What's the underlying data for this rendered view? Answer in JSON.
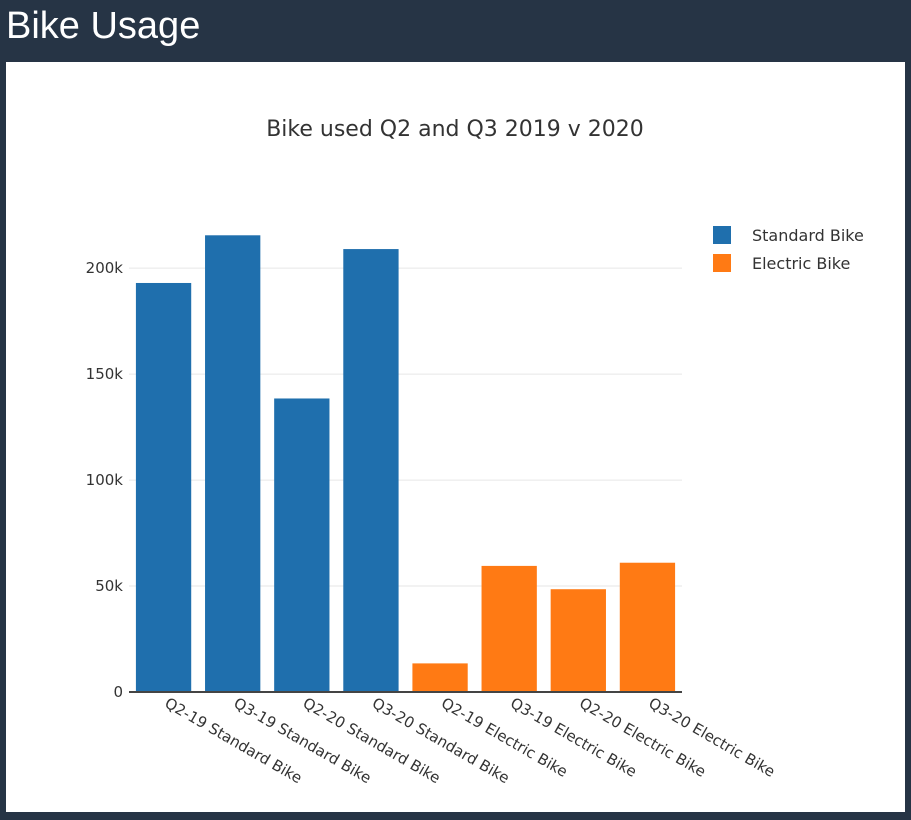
{
  "header": {
    "title": "Bike Usage"
  },
  "chart_data": {
    "type": "bar",
    "title": "Bike used Q2 and Q3 2019 v 2020",
    "xlabel": "",
    "ylabel": "",
    "ylim": [
      0,
      220000
    ],
    "y_ticks": [
      0,
      50000,
      100000,
      150000,
      200000
    ],
    "y_tick_labels": [
      "0",
      "50k",
      "100k",
      "150k",
      "200k"
    ],
    "grid": true,
    "legend_position": "top-right",
    "categories": [
      "Q2-19 Standard Bike",
      "Q3-19 Standard Bike",
      "Q2-20 Standard Bike",
      "Q3-20 Standard Bike",
      "Q2-19 Electric Bike",
      "Q3-19 Electric Bike",
      "Q2-20 Electric Bike",
      "Q3-20 Electric Bike"
    ],
    "series": [
      {
        "name": "Standard Bike",
        "color": "#1f6fad",
        "values": [
          193000,
          215500,
          138500,
          209000,
          null,
          null,
          null,
          null
        ]
      },
      {
        "name": "Electric Bike",
        "color": "#ff7a14",
        "values": [
          null,
          null,
          null,
          null,
          13500,
          59500,
          48500,
          61000
        ]
      }
    ]
  }
}
